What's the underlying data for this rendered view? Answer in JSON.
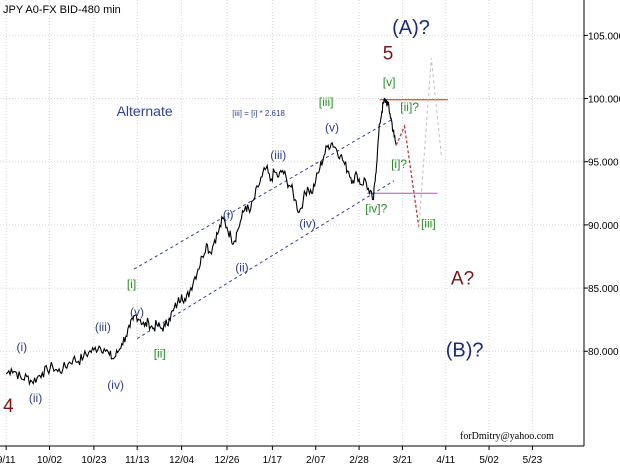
{
  "chart_data": {
    "type": "line",
    "title": "JPY A0-FX BID-480 min",
    "watermark": "forDmitry@yahoo.com",
    "ylim": [
      72.5,
      107.8
    ],
    "y_ticks": [
      {
        "label": "80.000",
        "value": 80
      },
      {
        "label": "85.000",
        "value": 85
      },
      {
        "label": "90.000",
        "value": 90
      },
      {
        "label": "95.000",
        "value": 95
      },
      {
        "label": "100.000",
        "value": 100
      },
      {
        "label": "105.000",
        "value": 105
      }
    ],
    "x_ticks": [
      {
        "label": "9/11",
        "t": 0
      },
      {
        "label": "10/02",
        "t": 42
      },
      {
        "label": "10/23",
        "t": 85
      },
      {
        "label": "11/13",
        "t": 127
      },
      {
        "label": "12/04",
        "t": 170
      },
      {
        "label": "12/26",
        "t": 214
      },
      {
        "label": "1/17",
        "t": 258
      },
      {
        "label": "2/07",
        "t": 300
      },
      {
        "label": "2/28",
        "t": 342
      },
      {
        "label": "3/21",
        "t": 384
      },
      {
        "label": "4/11",
        "t": 426
      },
      {
        "label": "5/02",
        "t": 468
      },
      {
        "label": "5/23",
        "t": 510
      }
    ],
    "x_range": [
      -6,
      560
    ],
    "series": [
      {
        "style": "price",
        "color": "#000000",
        "points": [
          [
            0,
            78.2
          ],
          [
            5,
            78.6
          ],
          [
            10,
            78.3
          ],
          [
            15,
            77.8
          ],
          [
            20,
            78.0
          ],
          [
            25,
            77.6
          ],
          [
            30,
            77.9
          ],
          [
            35,
            78.3
          ],
          [
            40,
            78.5
          ],
          [
            45,
            78.8
          ],
          [
            50,
            78.4
          ],
          [
            55,
            78.6
          ],
          [
            60,
            79.0
          ],
          [
            65,
            79.4
          ],
          [
            70,
            79.2
          ],
          [
            75,
            79.6
          ],
          [
            80,
            79.9
          ],
          [
            85,
            80.1
          ],
          [
            90,
            80.4
          ],
          [
            95,
            80.2
          ],
          [
            100,
            79.7
          ],
          [
            104,
            79.4
          ],
          [
            108,
            79.9
          ],
          [
            112,
            80.6
          ],
          [
            116,
            81.2
          ],
          [
            120,
            81.9
          ],
          [
            123,
            82.5
          ],
          [
            126,
            82.9
          ],
          [
            130,
            82.5
          ],
          [
            134,
            82.0
          ],
          [
            138,
            82.3
          ],
          [
            142,
            81.8
          ],
          [
            146,
            82.1
          ],
          [
            150,
            81.8
          ],
          [
            154,
            82.0
          ],
          [
            158,
            82.6
          ],
          [
            162,
            83.2
          ],
          [
            166,
            83.8
          ],
          [
            170,
            84.5
          ],
          [
            174,
            84.0
          ],
          [
            178,
            84.8
          ],
          [
            182,
            85.7
          ],
          [
            186,
            86.5
          ],
          [
            190,
            87.5
          ],
          [
            194,
            88.5
          ],
          [
            198,
            87.8
          ],
          [
            202,
            88.8
          ],
          [
            206,
            89.5
          ],
          [
            210,
            90.5
          ],
          [
            214,
            89.8
          ],
          [
            218,
            89.0
          ],
          [
            221,
            88.7
          ],
          [
            224,
            89.5
          ],
          [
            228,
            90.5
          ],
          [
            232,
            91.5
          ],
          [
            236,
            91.0
          ],
          [
            240,
            92.0
          ],
          [
            244,
            93.0
          ],
          [
            248,
            93.8
          ],
          [
            252,
            94.5
          ],
          [
            256,
            93.5
          ],
          [
            260,
            94.2
          ],
          [
            264,
            93.8
          ],
          [
            268,
            94.3
          ],
          [
            272,
            93.5
          ],
          [
            276,
            93.0
          ],
          [
            280,
            92.0
          ],
          [
            284,
            91.0
          ],
          [
            288,
            92.0
          ],
          [
            292,
            93.0
          ],
          [
            296,
            92.5
          ],
          [
            300,
            93.5
          ],
          [
            304,
            94.5
          ],
          [
            308,
            95.5
          ],
          [
            312,
            96.3
          ],
          [
            316,
            96.5
          ],
          [
            320,
            96.0
          ],
          [
            324,
            95.5
          ],
          [
            328,
            94.8
          ],
          [
            332,
            94.2
          ],
          [
            336,
            93.5
          ],
          [
            340,
            94.0
          ],
          [
            344,
            93.2
          ],
          [
            348,
            93.6
          ],
          [
            352,
            92.5
          ],
          [
            356,
            92.0
          ],
          [
            358,
            94.0
          ],
          [
            360,
            96.0
          ],
          [
            362,
            98.0
          ],
          [
            364,
            99.0
          ],
          [
            366,
            99.7
          ],
          [
            368,
            99.9
          ],
          [
            370,
            99.5
          ],
          [
            372,
            98.8
          ],
          [
            374,
            98.0
          ],
          [
            376,
            97.0
          ],
          [
            378,
            96.3
          ]
        ]
      },
      {
        "style": "dotted",
        "color": "#c43c3c",
        "points": [
          [
            378,
            96.3
          ],
          [
            386,
            97.8
          ],
          [
            400,
            89.8
          ]
        ]
      },
      {
        "style": "dashed",
        "color": "#bdbdbd",
        "points": [
          [
            400,
            89.8
          ],
          [
            412,
            103.2
          ],
          [
            422,
            95.3
          ]
        ]
      }
    ],
    "channel_lines": [
      {
        "color": "#2a3fa6",
        "points": [
          [
            124,
            86.5
          ],
          [
            375,
            98.4
          ]
        ]
      },
      {
        "color": "#2a3fa6",
        "points": [
          [
            127,
            81.0
          ],
          [
            376,
            93.5
          ]
        ]
      }
    ],
    "levels": [
      {
        "color": "#d81f1f",
        "points": [
          [
            362,
            99.9
          ],
          [
            428,
            99.9
          ]
        ]
      },
      {
        "color": "#c64ab9",
        "points": [
          [
            350,
            92.5
          ],
          [
            418,
            92.5
          ]
        ]
      }
    ],
    "annotations": [
      {
        "text": "(i)",
        "at": [
          10,
          80.0
        ],
        "color": "#2d3c8f",
        "size": 12
      },
      {
        "text": "(ii)",
        "at": [
          22,
          76.0
        ],
        "color": "#2d3c8f",
        "size": 12
      },
      {
        "text": "(iii)",
        "at": [
          86,
          81.6
        ],
        "color": "#2d3c8f",
        "size": 12
      },
      {
        "text": "(iv)",
        "at": [
          98,
          77.0
        ],
        "color": "#2d3c8f",
        "size": 12
      },
      {
        "text": "[i]",
        "at": [
          117,
          85.0
        ],
        "color": "#268c26",
        "size": 12
      },
      {
        "text": "(v)",
        "at": [
          120,
          82.8
        ],
        "color": "#2d3c8f",
        "size": 12
      },
      {
        "text": "[ii]",
        "at": [
          143,
          79.5
        ],
        "color": "#268c26",
        "size": 12
      },
      {
        "text": "(i)",
        "at": [
          210,
          90.5
        ],
        "color": "#2d3c8f",
        "size": 12
      },
      {
        "text": "(ii)",
        "at": [
          222,
          86.3
        ],
        "color": "#2d3c8f",
        "size": 12
      },
      {
        "text": "(iii)",
        "at": [
          256,
          95.2
        ],
        "color": "#2d3c8f",
        "size": 12
      },
      {
        "text": "(iv)",
        "at": [
          284,
          89.8
        ],
        "color": "#2d3c8f",
        "size": 12
      },
      {
        "text": "[iii]",
        "at": [
          303,
          99.4
        ],
        "color": "#268c26",
        "size": 12
      },
      {
        "text": "(v)",
        "at": [
          309,
          97.4
        ],
        "color": "#2d3c8f",
        "size": 12
      },
      {
        "text": "[iv]?",
        "at": [
          348,
          91.0
        ],
        "color": "#268c26",
        "size": 12
      },
      {
        "text": "[i]?",
        "at": [
          373,
          94.5
        ],
        "color": "#268c26",
        "size": 12
      },
      {
        "text": "[ii]?",
        "at": [
          382,
          99.0
        ],
        "color": "#268c26",
        "size": 12
      },
      {
        "text": "[iii]",
        "at": [
          402,
          89.8
        ],
        "color": "#268c26",
        "size": 12
      },
      {
        "text": "[v]",
        "at": [
          365,
          101.0
        ],
        "color": "#268c26",
        "size": 12
      },
      {
        "text": "5",
        "at": [
          365,
          103.1
        ],
        "color": "#7a1416",
        "size": 19
      },
      {
        "text": "(A)?",
        "at": [
          374,
          105.1
        ],
        "color": "#1c2a7a",
        "size": 20
      },
      {
        "text": "A?",
        "at": [
          431,
          85.3
        ],
        "color": "#7a1416",
        "size": 19
      },
      {
        "text": "(B)?",
        "at": [
          426,
          79.6
        ],
        "color": "#1c2a7a",
        "size": 20
      },
      {
        "text": "4",
        "at": [
          -3,
          75.2
        ],
        "color": "#7a1416",
        "size": 19
      },
      {
        "text": "Alternate",
        "at": [
          107,
          98.6
        ],
        "color": "#2a3fa6",
        "size": 14
      },
      {
        "text": "[iii] = [i] * 2.618",
        "at": [
          219,
          98.6
        ],
        "color": "#2a3fa6",
        "size": 8
      }
    ]
  }
}
